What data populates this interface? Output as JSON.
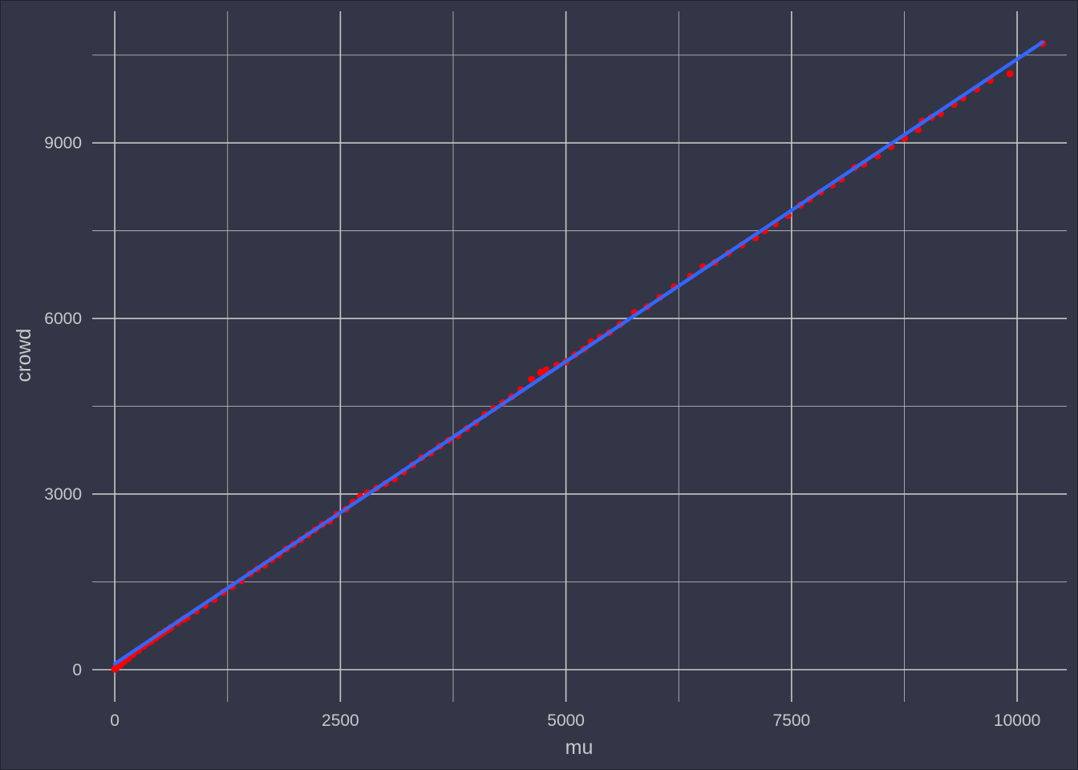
{
  "colors": {
    "background": "#333646",
    "grid": "#c8c8c8",
    "text": "#c8c8c8",
    "points": "#ff0000",
    "smooth_line": "#3366ff"
  },
  "chart_data": {
    "type": "scatter",
    "title": "",
    "xlabel": "mu",
    "ylabel": "crowd",
    "xlim": [
      -250,
      10550
    ],
    "ylim": [
      -550,
      11250
    ],
    "x_ticks": [
      0,
      2500,
      5000,
      7500,
      10000
    ],
    "x_tick_labels": [
      "0",
      "2500",
      "5000",
      "7500",
      "10000"
    ],
    "y_ticks": [
      0,
      3000,
      6000,
      9000
    ],
    "y_tick_labels": [
      "0",
      "3000",
      "6000",
      "9000"
    ],
    "grid": true,
    "legend": "none",
    "series": [
      {
        "kind": "points",
        "color": "#ff0000",
        "x": [
          0,
          10,
          20,
          40,
          60,
          100,
          150,
          200,
          260,
          320,
          400,
          450,
          500,
          560,
          620,
          700,
          760,
          800,
          900,
          1000,
          1100,
          1200,
          1300,
          1400,
          1500,
          1580,
          1660,
          1740,
          1820,
          1900,
          1980,
          2060,
          2140,
          2220,
          2300,
          2380,
          2460,
          2560,
          2640,
          2720,
          2800,
          2900,
          3000,
          3100,
          3200,
          3300,
          3400,
          3500,
          3600,
          3700,
          3800,
          3900,
          4000,
          4100,
          4200,
          4300,
          4400,
          4500,
          4620,
          4720,
          4780,
          4900,
          5000,
          5100,
          5200,
          5280,
          5380,
          5480,
          5600,
          5760,
          5900,
          6040,
          6200,
          6380,
          6520,
          6650,
          6800,
          6950,
          7100,
          7200,
          7320,
          7460,
          7600,
          7700,
          7820,
          7950,
          8050,
          8200,
          8300,
          8450,
          8600,
          8750,
          8900,
          8950,
          9050,
          9150,
          9300,
          9400,
          9550,
          9700,
          9920,
          10280
        ],
        "y": [
          10,
          30,
          40,
          70,
          80,
          140,
          190,
          260,
          330,
          400,
          480,
          540,
          600,
          660,
          720,
          800,
          860,
          890,
          1000,
          1100,
          1200,
          1320,
          1420,
          1520,
          1640,
          1720,
          1790,
          1880,
          1960,
          2060,
          2140,
          2220,
          2300,
          2390,
          2480,
          2540,
          2650,
          2740,
          2860,
          2960,
          3020,
          3100,
          3180,
          3260,
          3380,
          3500,
          3620,
          3700,
          3820,
          3920,
          4000,
          4120,
          4220,
          4360,
          4460,
          4560,
          4660,
          4780,
          4960,
          5080,
          5120,
          5200,
          5260,
          5380,
          5480,
          5600,
          5680,
          5760,
          5900,
          6100,
          6200,
          6360,
          6540,
          6720,
          6880,
          6960,
          7120,
          7260,
          7380,
          7500,
          7620,
          7760,
          7940,
          8040,
          8160,
          8280,
          8380,
          8580,
          8640,
          8780,
          8940,
          9080,
          9230,
          9370,
          9440,
          9500,
          9660,
          9770,
          9920,
          10070,
          10180,
          10700
        ]
      },
      {
        "kind": "line",
        "color": "#ff0000",
        "x": [
          0,
          300,
          600
        ],
        "y": [
          0,
          360,
          660
        ]
      },
      {
        "kind": "line",
        "color": "#3366ff",
        "x": [
          0,
          10280
        ],
        "y": [
          100,
          10720
        ]
      }
    ]
  }
}
